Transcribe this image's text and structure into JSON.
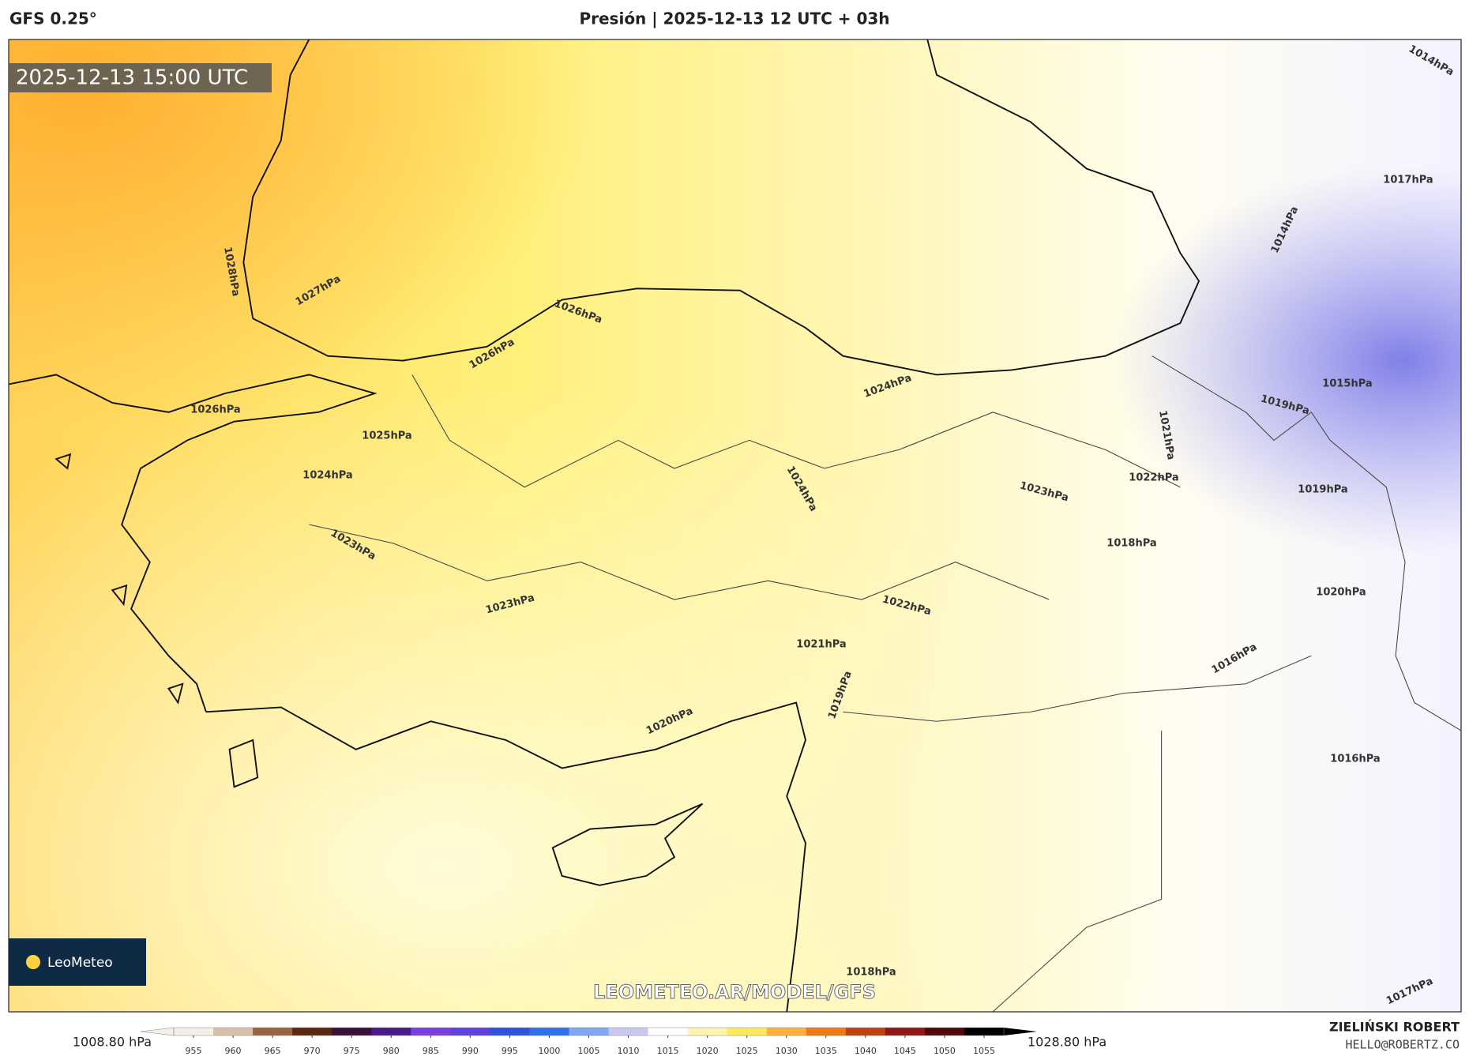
{
  "header": {
    "model": "GFS 0.25°",
    "title": "Presión | 2025-12-13 12 UTC + 03h"
  },
  "map": {
    "timestamp": "2025-12-13 15:00 UTC",
    "watermark": "LEOMETEO.AR/MODEL/GFS",
    "logo": "LeoMeteo",
    "contour_labels": [
      "1028hPa",
      "1027hPa",
      "1026hPa",
      "1026hPa",
      "1026hPa",
      "1025hPa",
      "1024hPa",
      "1024hPa",
      "1024hPa",
      "1023hPa",
      "1023hPa",
      "1023hPa",
      "1022hPa",
      "1022hPa",
      "1021hPa",
      "1021hPa",
      "1020hPa",
      "1019hPa",
      "1019hPa",
      "1019hPa",
      "1018hPa",
      "1018hPa",
      "1017hPa",
      "1016hPa",
      "1016hPa",
      "1015hPa",
      "1014hPa",
      "1017hPa",
      "1020hPa",
      "1014hPa"
    ]
  },
  "colorbar": {
    "min_label": "1008.80 hPa",
    "max_label": "1028.80 hPa",
    "ticks": [
      955,
      960,
      965,
      970,
      975,
      980,
      985,
      990,
      995,
      1000,
      1005,
      1010,
      1015,
      1020,
      1025,
      1030,
      1035,
      1040,
      1045,
      1050,
      1055
    ],
    "colors": [
      "#f4efe8",
      "#d8c0a8",
      "#9a6440",
      "#5a2810",
      "#3a0f3a",
      "#4a1a8a",
      "#7a3ee0",
      "#6040e0",
      "#3050e0",
      "#3070f0",
      "#80a8f0",
      "#c8c8f0",
      "#ffffff",
      "#fff4b0",
      "#ffe95a",
      "#ffb13a",
      "#f07a10",
      "#c04010",
      "#901818",
      "#500808",
      "#000000"
    ]
  },
  "footer": {
    "author": "ZIELIŃSKI ROBERT",
    "email": "HELLO@ROBERTZ.CO"
  }
}
